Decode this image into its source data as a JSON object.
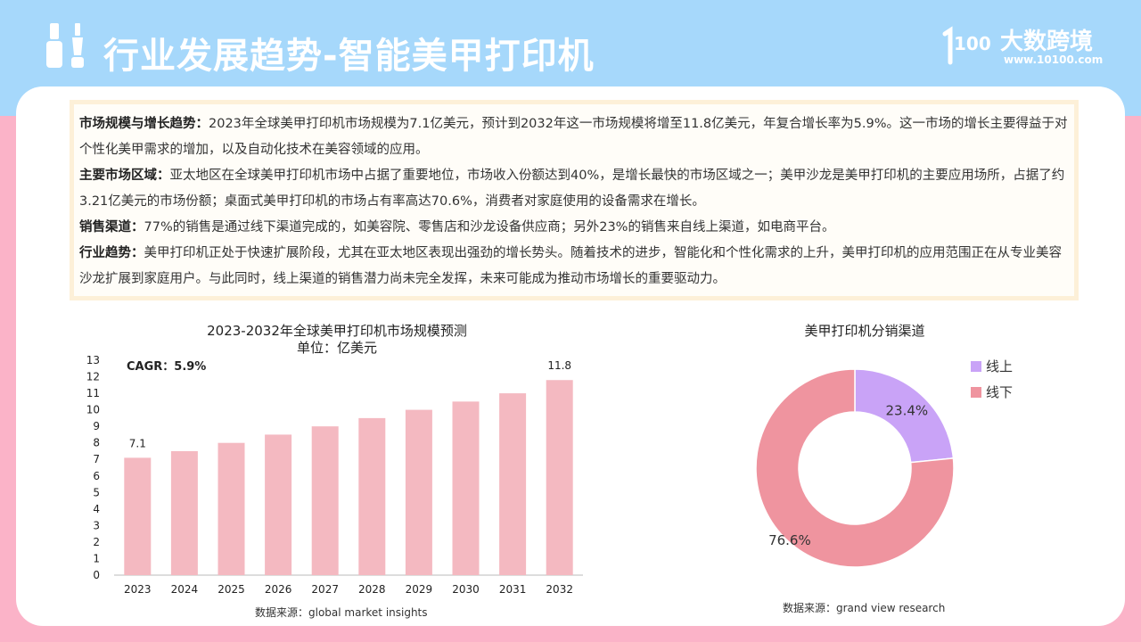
{
  "header": {
    "title": "行业发展趋势-智能美甲打印机",
    "icon": "nail-polish-icon",
    "logo": {
      "brand": "大数跨境",
      "url": "www.10100.com",
      "mark_text": "100"
    }
  },
  "summary": [
    {
      "key": "市场规模与增长趋势：",
      "text": "2023年全球美甲打印机市场规模为7.1亿美元，预计到2032年这一市场规模将增至11.8亿美元，年复合增长率为5.9%。这一市场的增长主要得益于对个性化美甲需求的增加，以及自动化技术在美容领域的应用。"
    },
    {
      "key": "主要市场区域：",
      "text": "亚太地区在全球美甲打印机市场中占据了重要地位，市场收入份额达到40%，是增长最快的市场区域之一；美甲沙龙是美甲打印机的主要应用场所，占据了约3.21亿美元的市场份额；桌面式美甲打印机的市场占有率高达70.6%，消费者对家庭使用的设备需求在增长。"
    },
    {
      "key": "销售渠道：",
      "text": "77%的销售是通过线下渠道完成的，如美容院、零售店和沙龙设备供应商；另外23%的销售来自线上渠道，如电商平台。"
    },
    {
      "key": "行业趋势：",
      "text": "美甲打印机正处于快速扩展阶段，尤其在亚太地区表现出强劲的增长势头。随着技术的进步，智能化和个性化需求的上升，美甲打印机的应用范围正在从专业美容沙龙扩展到家庭用户。与此同时，线上渠道的销售潜力尚未完全发挥，未来可能成为推动市场增长的重要驱动力。"
    }
  ],
  "chart_data": [
    {
      "type": "bar",
      "title": "2023-2032年全球美甲打印机市场规模预测",
      "subtitle": "单位：亿美元",
      "annotation": "CAGR：5.9%",
      "categories": [
        "2023",
        "2024",
        "2025",
        "2026",
        "2027",
        "2028",
        "2029",
        "2030",
        "2031",
        "2032"
      ],
      "values": [
        7.1,
        7.5,
        8.0,
        8.5,
        9.0,
        9.5,
        10.0,
        10.5,
        11.0,
        11.8
      ],
      "data_labels": {
        "first": "7.1",
        "last": "11.8"
      },
      "yticks": [
        "0",
        "1",
        "2",
        "3",
        "4",
        "5",
        "6",
        "7",
        "8",
        "9",
        "10",
        "11",
        "12",
        "13"
      ],
      "ylim": [
        0,
        13
      ],
      "grid": false,
      "color": "#f4b9c1",
      "source": "数据来源：global market insights"
    },
    {
      "type": "pie",
      "donut": true,
      "title": "美甲打印机分销渠道",
      "labels": [
        "线上",
        "线下"
      ],
      "values": [
        23.4,
        76.6
      ],
      "value_labels": [
        "23.4%",
        "76.6%"
      ],
      "colors": [
        "#c9a3f7",
        "#ef949f"
      ],
      "legend": "top-right",
      "source": "数据来源：grand view research"
    }
  ]
}
